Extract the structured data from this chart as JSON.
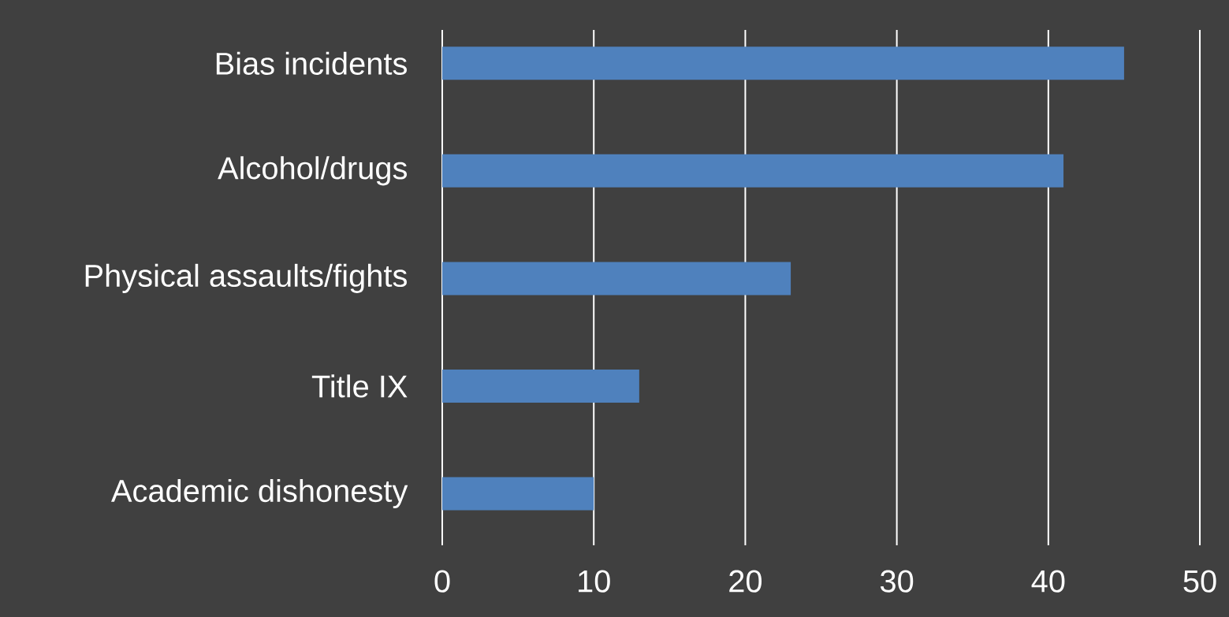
{
  "chart_data": {
    "type": "bar",
    "orientation": "horizontal",
    "categories": [
      "Bias incidents",
      "Alcohol/drugs",
      "Physical assaults/fights",
      "Title IX",
      "Academic dishonesty"
    ],
    "values": [
      45,
      41,
      23,
      13,
      10
    ],
    "color": "#4f81bd",
    "xlim": [
      0,
      50
    ],
    "xticks": [
      0,
      10,
      20,
      30,
      40,
      50
    ],
    "grid": "x"
  }
}
